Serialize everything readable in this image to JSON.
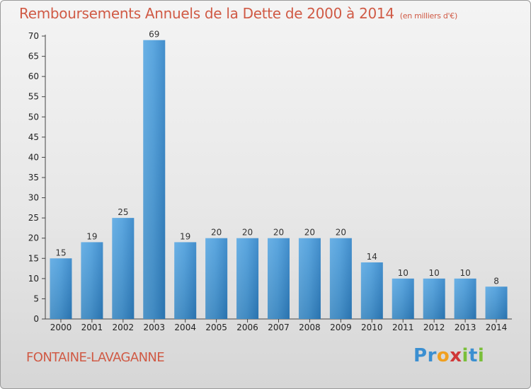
{
  "header": {
    "title": "Remboursements Annuels de la Dette de 2000 à 2014",
    "unit": "(en milliers d'€)"
  },
  "footer": {
    "location": "FONTAINE-LAVAGANNE",
    "brand": "Proxiti",
    "brand_colors": [
      "#3b8fd1",
      "#3b8fd1",
      "#f0a020",
      "#d03838",
      "#7abf3a",
      "#3b8fd1",
      "#7abf3a"
    ]
  },
  "colors": {
    "bar": "#3d8fd2",
    "bar_light": "#5eaae4",
    "text_accent": "#d05a45"
  },
  "chart_data": {
    "type": "bar",
    "title": "Remboursements Annuels de la Dette de 2000 à 2014",
    "subtitle": "(en milliers d'€)",
    "categories": [
      "2000",
      "2001",
      "2002",
      "2003",
      "2004",
      "2005",
      "2006",
      "2007",
      "2008",
      "2009",
      "2010",
      "2011",
      "2012",
      "2013",
      "2014"
    ],
    "values": [
      15,
      19,
      25,
      69,
      19,
      20,
      20,
      20,
      20,
      20,
      14,
      10,
      10,
      10,
      8
    ],
    "ylim": [
      0,
      70
    ],
    "yticks": [
      0,
      5,
      10,
      15,
      20,
      25,
      30,
      35,
      40,
      45,
      50,
      55,
      60,
      65,
      70
    ],
    "grid": false,
    "xlabel": "",
    "ylabel": ""
  }
}
